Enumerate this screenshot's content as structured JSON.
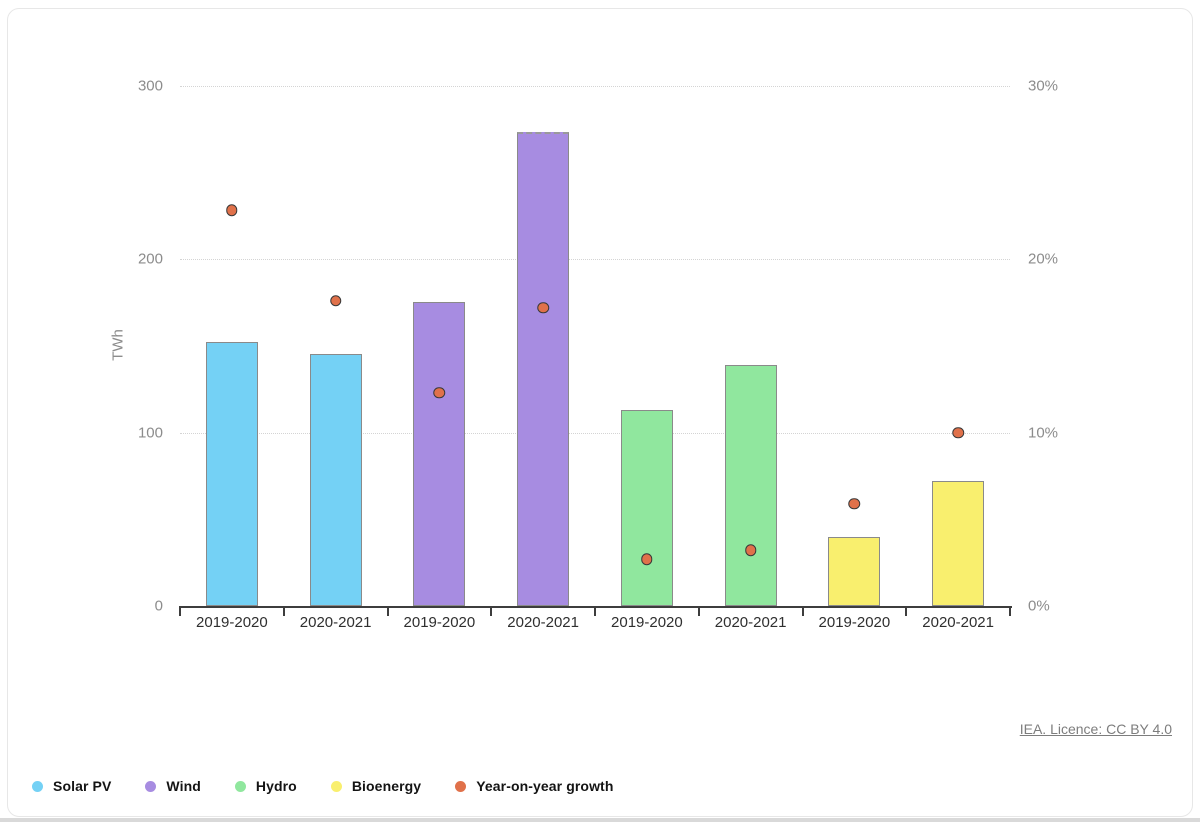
{
  "footer": {
    "licence": "IEA. Licence: CC BY 4.0"
  },
  "chart_data": {
    "type": "bar",
    "title": "",
    "xlabel": "",
    "ylabel": "TWh",
    "categories": [
      "2019-2020",
      "2020-2021",
      "2019-2020",
      "2020-2021",
      "2019-2020",
      "2020-2021",
      "2019-2020",
      "2020-2021"
    ],
    "bars": [
      {
        "category": "2019-2020",
        "series": "Solar PV",
        "value": 152
      },
      {
        "category": "2020-2021",
        "series": "Solar PV",
        "value": 145
      },
      {
        "category": "2019-2020",
        "series": "Wind",
        "value": 175
      },
      {
        "category": "2020-2021",
        "series": "Wind",
        "value": 273,
        "dashed_top": true
      },
      {
        "category": "2019-2020",
        "series": "Hydro",
        "value": 113
      },
      {
        "category": "2020-2021",
        "series": "Hydro",
        "value": 139
      },
      {
        "category": "2019-2020",
        "series": "Bioenergy",
        "value": 40
      },
      {
        "category": "2020-2021",
        "series": "Bioenergy",
        "value": 72
      }
    ],
    "scatter_series": {
      "name": "Year-on-year growth",
      "values_pct": [
        22.8,
        17.6,
        12.3,
        17.2,
        2.7,
        3.2,
        5.9,
        10.0
      ]
    },
    "left_axis": {
      "label": "TWh",
      "ticks": [
        "0",
        "100",
        "200",
        "300"
      ],
      "ylim": [
        0,
        300
      ],
      "grid": true
    },
    "right_axis": {
      "ticks": [
        "0%",
        "10%",
        "20%",
        "30%"
      ],
      "ylim": [
        0,
        30
      ]
    },
    "colors": {
      "Solar PV": "#74d1f5",
      "Wind": "#a78ce1",
      "Hydro": "#90e79e",
      "Bioenergy": "#f9ef6e",
      "Year-on-year growth": "#e0714a"
    },
    "legend": [
      {
        "label": "Solar PV",
        "color": "#74d1f5"
      },
      {
        "label": "Wind",
        "color": "#a78ce1"
      },
      {
        "label": "Hydro",
        "color": "#90e79e"
      },
      {
        "label": "Bioenergy",
        "color": "#f9ef6e"
      },
      {
        "label": "Year-on-year growth",
        "color": "#e0714a"
      }
    ],
    "legend_position": "bottom-left"
  }
}
